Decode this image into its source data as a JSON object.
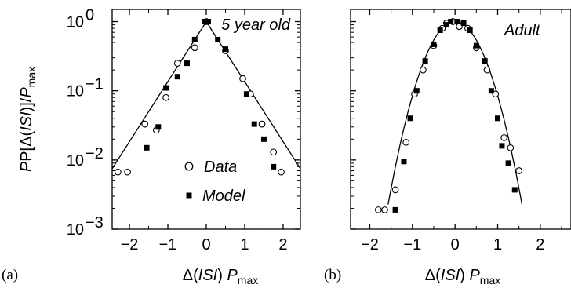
{
  "chart_data": [
    {
      "type": "scatter",
      "panel_label": "(a)",
      "annotation": "5 year old",
      "xlabel_prefix": "Δ(",
      "xlabel_italic": "ISI",
      "xlabel_mid": ") ",
      "xlabel_P": "P",
      "xlabel_sub": "max",
      "ylabel_prefix": "P[Δ(",
      "ylabel_italic": "ISI",
      "ylabel_mid": ")]/",
      "ylabel_P": "P",
      "ylabel_sub": "max",
      "xlim": [
        -2.45,
        2.45
      ],
      "ylim": [
        0.001,
        1.5
      ],
      "y_scale": "log",
      "xticks": [
        -2,
        -1,
        0,
        1,
        2
      ],
      "xtick_labels": [
        "−2",
        "−1",
        "0",
        "1",
        "2"
      ],
      "yticks": [
        0.001,
        0.01,
        0.1,
        1
      ],
      "ytick_base": "10",
      "ytick_exponents": [
        "−3",
        "−2",
        "−1",
        "0"
      ],
      "legend": {
        "placement": "bottom-center",
        "entries": [
          {
            "label": "Data",
            "marker": "open-circle"
          },
          {
            "label": "Model",
            "marker": "filled-square"
          }
        ]
      },
      "series": [
        {
          "name": "Data",
          "marker": "open-circle",
          "x": [
            -2.3,
            -2.05,
            -1.6,
            -1.3,
            -1.05,
            -0.75,
            -0.3,
            0.0,
            0.5,
            0.95,
            1.15,
            1.45,
            1.75,
            1.95
          ],
          "y": [
            0.0067,
            0.0067,
            0.033,
            0.027,
            0.08,
            0.25,
            0.42,
            1.0,
            0.38,
            0.15,
            0.09,
            0.033,
            0.013,
            0.0067
          ]
        },
        {
          "name": "Model",
          "marker": "filled-square",
          "x": [
            -1.55,
            -1.25,
            -1.05,
            -0.75,
            -0.5,
            -0.3,
            -0.05,
            0.05,
            0.3,
            0.5,
            1.05,
            1.25,
            1.5,
            1.75
          ],
          "y": [
            0.015,
            0.03,
            0.11,
            0.16,
            0.25,
            0.55,
            1.0,
            1.0,
            0.55,
            0.4,
            0.09,
            0.033,
            0.02,
            0.008
          ]
        },
        {
          "name": "",
          "style": "line",
          "x": [
            -2.45,
            0.0,
            2.45
          ],
          "y": [
            0.0075,
            1.0,
            0.0075
          ]
        }
      ]
    },
    {
      "type": "scatter",
      "panel_label": "(b)",
      "annotation": "Adult",
      "xlabel_prefix": "Δ(",
      "xlabel_italic": "ISI",
      "xlabel_mid": ") ",
      "xlabel_P": "P",
      "xlabel_sub": "max",
      "xlim": [
        -2.45,
        2.45
      ],
      "ylim": [
        0.001,
        1.5
      ],
      "y_scale": "log",
      "xticks": [
        -2,
        -1,
        0,
        1,
        2
      ],
      "xtick_labels": [
        "−2",
        "−1",
        "0",
        "1",
        "2"
      ],
      "yticks": [
        0.001,
        0.01,
        0.1,
        1
      ],
      "series": [
        {
          "name": "Data",
          "marker": "open-circle",
          "x": [
            -1.8,
            -1.65,
            -1.4,
            -1.15,
            -0.95,
            -0.75,
            -0.5,
            -0.3,
            -0.2,
            -0.05,
            0.1,
            0.3,
            0.5,
            0.75,
            0.95,
            1.15,
            1.3,
            1.5
          ],
          "y": [
            0.0019,
            0.0019,
            0.0037,
            0.018,
            0.09,
            0.2,
            0.45,
            0.8,
            0.95,
            1.0,
            0.85,
            0.8,
            0.42,
            0.2,
            0.09,
            0.021,
            0.015,
            0.007
          ],
          "note": "scatter open circles"
        },
        {
          "name": "Model",
          "marker": "filled-square",
          "x": [
            -1.4,
            -1.2,
            -1.05,
            -0.9,
            -0.7,
            -0.5,
            -0.35,
            -0.2,
            -0.1,
            0.05,
            0.2,
            0.35,
            0.5,
            0.7,
            0.85,
            1.0,
            1.1,
            1.25,
            1.4
          ],
          "y": [
            0.0019,
            0.0095,
            0.04,
            0.1,
            0.27,
            0.47,
            0.75,
            0.9,
            1.0,
            1.0,
            0.95,
            0.75,
            0.45,
            0.27,
            0.1,
            0.04,
            0.016,
            0.009,
            0.0037
          ]
        },
        {
          "name": "",
          "style": "line",
          "curve": "gaussian",
          "sigma": 0.45,
          "x_range": [
            -1.57,
            1.57
          ]
        }
      ]
    }
  ]
}
